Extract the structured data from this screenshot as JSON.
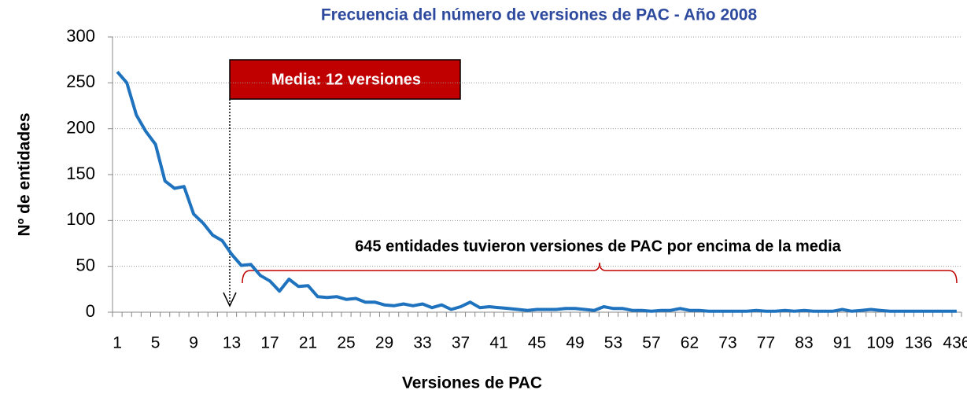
{
  "chart_data": {
    "type": "line",
    "title": "Frecuencia del número de versiones de PAC - Año 2008",
    "x_label": "Versiones de PAC",
    "y_label": "Nº de entidades",
    "annotations": [
      "Media: 12 versiones",
      "645 entidades tuvieron versiones de PAC por encima de la media"
    ],
    "categories": [
      "1",
      null,
      null,
      null,
      "5",
      null,
      null,
      null,
      "9",
      null,
      null,
      null,
      "13",
      null,
      null,
      null,
      "17",
      null,
      null,
      null,
      "21",
      null,
      null,
      null,
      "25",
      null,
      null,
      null,
      "29",
      null,
      null,
      null,
      "33",
      null,
      null,
      null,
      "37",
      null,
      null,
      null,
      "41",
      null,
      null,
      null,
      "45",
      null,
      null,
      null,
      "49",
      null,
      null,
      null,
      "53",
      null,
      null,
      null,
      "57",
      null,
      null,
      null,
      "62",
      null,
      null,
      null,
      "73",
      null,
      null,
      null,
      "77",
      null,
      null,
      null,
      "83",
      null,
      null,
      null,
      "91",
      null,
      null,
      null,
      "109",
      null,
      null,
      null,
      "136",
      null,
      null,
      null,
      "436"
    ],
    "values": [
      262,
      250,
      215,
      197,
      183,
      143,
      135,
      137,
      107,
      97,
      84,
      78,
      63,
      51,
      52,
      40,
      34,
      23,
      36,
      28,
      29,
      17,
      16,
      17,
      14,
      15,
      11,
      11,
      8,
      7,
      9,
      7,
      9,
      5,
      8,
      3,
      6,
      11,
      5,
      6,
      5,
      4,
      3,
      2,
      3,
      3,
      3,
      4,
      4,
      3,
      2,
      6,
      4,
      4,
      2,
      2,
      1,
      2,
      2,
      4,
      2,
      2,
      1,
      1,
      1,
      1,
      1,
      2,
      1,
      1,
      2,
      1,
      2,
      1,
      1,
      1,
      3,
      1,
      2,
      3,
      2,
      1,
      1,
      1,
      1,
      1,
      1,
      1,
      1
    ],
    "color": "#1f72bd",
    "ylim": [
      0,
      300
    ],
    "yticks": [
      0,
      50,
      100,
      150,
      200,
      250,
      300
    ],
    "grid": true
  }
}
